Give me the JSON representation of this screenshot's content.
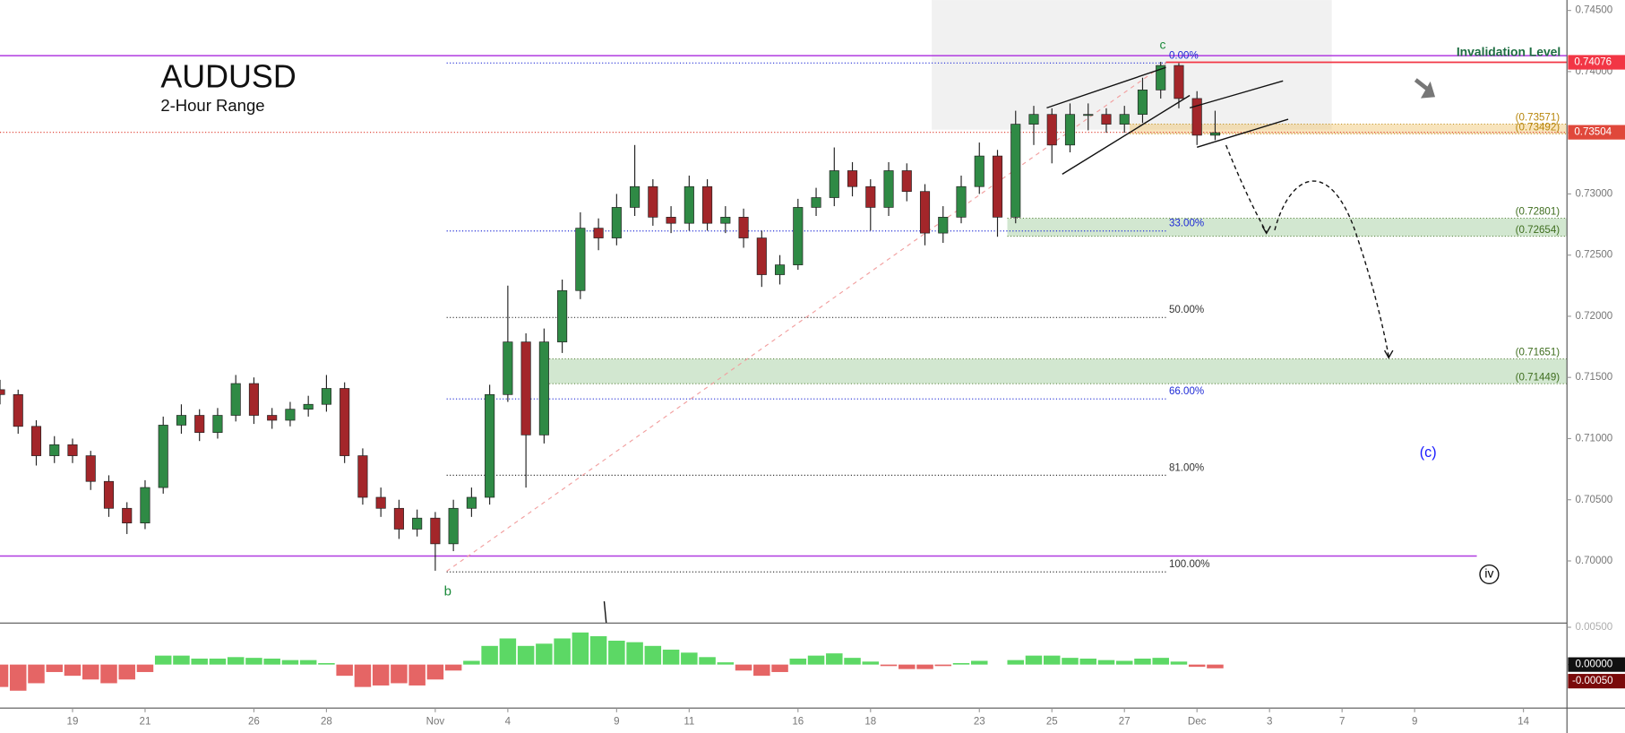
{
  "chart_data": {
    "type": "candlestick",
    "title": "AUDUSD",
    "subtitle": "2-Hour Range",
    "x": [
      0,
      0.5,
      1,
      1.5,
      2,
      2.5,
      3,
      3.5,
      4,
      4.5,
      5,
      5.5,
      6,
      6.5,
      7,
      7.5,
      8,
      8.5,
      9,
      9.5,
      10,
      10.5,
      11,
      11.5,
      12,
      12.5,
      13,
      13.5,
      14,
      14.5,
      15,
      15.5,
      16,
      16.5,
      17,
      17.5,
      18,
      18.5,
      19,
      19.5,
      20,
      20.5,
      21,
      21.5,
      22,
      22.5,
      23,
      23.5,
      24,
      24.5,
      25,
      25.5,
      26,
      26.5,
      27,
      27.5,
      28,
      28.5,
      29,
      29.5,
      30,
      30.5,
      31,
      31.5,
      32,
      32.5,
      33,
      33.5
    ],
    "open": [
      0.714,
      0.7136,
      0.711,
      0.7086,
      0.7095,
      0.7086,
      0.7065,
      0.7043,
      0.7031,
      0.706,
      0.7111,
      0.7119,
      0.7105,
      0.7119,
      0.7145,
      0.7119,
      0.7115,
      0.7124,
      0.7128,
      0.7141,
      0.7086,
      0.7052,
      0.7043,
      0.7026,
      0.7035,
      0.7014,
      0.7043,
      0.7052,
      0.7136,
      0.7179,
      0.7103,
      0.7179,
      0.7221,
      0.7272,
      0.7264,
      0.7289,
      0.7306,
      0.7281,
      0.7276,
      0.7306,
      0.7276,
      0.7281,
      0.7264,
      0.7234,
      0.7242,
      0.7289,
      0.7297,
      0.7319,
      0.7306,
      0.7289,
      0.7319,
      0.7302,
      0.7268,
      0.7281,
      0.7306,
      0.7331,
      0.7281,
      0.7357,
      0.7365,
      0.734,
      0.7365,
      0.7365,
      0.7357,
      0.7365,
      0.7385,
      0.7405,
      0.7378,
      0.7348
    ],
    "high": [
      0.7148,
      0.714,
      0.7115,
      0.7102,
      0.71,
      0.709,
      0.707,
      0.7048,
      0.7066,
      0.7118,
      0.7128,
      0.7124,
      0.7125,
      0.7152,
      0.715,
      0.7125,
      0.713,
      0.7135,
      0.7152,
      0.7146,
      0.7092,
      0.706,
      0.705,
      0.7042,
      0.704,
      0.705,
      0.706,
      0.7144,
      0.7225,
      0.7186,
      0.719,
      0.723,
      0.7285,
      0.728,
      0.73,
      0.734,
      0.7312,
      0.729,
      0.7315,
      0.7312,
      0.729,
      0.7288,
      0.727,
      0.725,
      0.7296,
      0.7305,
      0.7338,
      0.7326,
      0.7312,
      0.7326,
      0.7325,
      0.7308,
      0.729,
      0.7315,
      0.7342,
      0.7336,
      0.7368,
      0.7372,
      0.737,
      0.7374,
      0.7374,
      0.737,
      0.7372,
      0.7395,
      0.7408,
      0.7407,
      0.7384,
      0.7368
    ],
    "low": [
      0.7128,
      0.7104,
      0.7078,
      0.708,
      0.708,
      0.7058,
      0.7036,
      0.7022,
      0.7026,
      0.7055,
      0.7104,
      0.7098,
      0.71,
      0.7114,
      0.7112,
      0.7108,
      0.711,
      0.7118,
      0.7122,
      0.708,
      0.7046,
      0.7036,
      0.7018,
      0.702,
      0.6992,
      0.7008,
      0.7036,
      0.7046,
      0.713,
      0.706,
      0.7096,
      0.717,
      0.7214,
      0.7254,
      0.7258,
      0.7282,
      0.7274,
      0.7268,
      0.727,
      0.727,
      0.7268,
      0.7256,
      0.7224,
      0.7226,
      0.7238,
      0.7282,
      0.729,
      0.7298,
      0.727,
      0.7282,
      0.7294,
      0.7258,
      0.726,
      0.7276,
      0.73,
      0.7265,
      0.7276,
      0.734,
      0.7325,
      0.7334,
      0.7352,
      0.735,
      0.735,
      0.7358,
      0.7378,
      0.737,
      0.734,
      0.7344
    ],
    "close": [
      0.7136,
      0.711,
      0.7086,
      0.7095,
      0.7086,
      0.7065,
      0.7043,
      0.7031,
      0.706,
      0.7111,
      0.7119,
      0.7105,
      0.7119,
      0.7145,
      0.7119,
      0.7115,
      0.7124,
      0.7128,
      0.7141,
      0.7086,
      0.7052,
      0.7043,
      0.7026,
      0.7035,
      0.7014,
      0.7043,
      0.7052,
      0.7136,
      0.7179,
      0.7103,
      0.7179,
      0.7221,
      0.7272,
      0.7264,
      0.7289,
      0.7306,
      0.7281,
      0.7276,
      0.7306,
      0.7276,
      0.7281,
      0.7264,
      0.7234,
      0.7242,
      0.7289,
      0.7297,
      0.7319,
      0.7306,
      0.7289,
      0.7319,
      0.7302,
      0.7268,
      0.7281,
      0.7306,
      0.7331,
      0.7281,
      0.7357,
      0.7365,
      0.734,
      0.7365,
      0.7365,
      0.7357,
      0.7365,
      0.7385,
      0.7405,
      0.7378,
      0.7348,
      0.735
    ],
    "up_color": "#2f8a45",
    "down_color": "#a3262a",
    "xlim": [
      0,
      43.2
    ],
    "xticks": [
      {
        "value": 2,
        "label": "19"
      },
      {
        "value": 4,
        "label": "21"
      },
      {
        "value": 7,
        "label": "26"
      },
      {
        "value": 9,
        "label": "28"
      },
      {
        "value": 12,
        "label": "Nov"
      },
      {
        "value": 14,
        "label": "4"
      },
      {
        "value": 17,
        "label": "9"
      },
      {
        "value": 19,
        "label": "11"
      },
      {
        "value": 22,
        "label": "16"
      },
      {
        "value": 24,
        "label": "18"
      },
      {
        "value": 27,
        "label": "23"
      },
      {
        "value": 29,
        "label": "25"
      },
      {
        "value": 31,
        "label": "27"
      },
      {
        "value": 33,
        "label": "Dec"
      },
      {
        "value": 35,
        "label": "3"
      },
      {
        "value": 37,
        "label": "7"
      },
      {
        "value": 39,
        "label": "9"
      },
      {
        "value": 42,
        "label": "14"
      }
    ],
    "ylim": [
      0.69492,
      0.74585
    ],
    "yticks": [
      {
        "value": 0.745,
        "label": "0.74500"
      },
      {
        "value": 0.74,
        "label": "0.74000"
      },
      {
        "value": 0.735,
        "label": "0.73500"
      },
      {
        "value": 0.73,
        "label": "0.73000"
      },
      {
        "value": 0.725,
        "label": "0.72500"
      },
      {
        "value": 0.72,
        "label": "0.72000"
      },
      {
        "value": 0.715,
        "label": "0.71500"
      },
      {
        "value": 0.71,
        "label": "0.71000"
      },
      {
        "value": 0.705,
        "label": "0.70500"
      },
      {
        "value": 0.7,
        "label": "0.70000"
      }
    ],
    "levels": [
      {
        "value": 0.74076,
        "label": "0.74076",
        "color": "#f23645"
      },
      {
        "value": 0.73504,
        "label": "0.73504",
        "color": "#e0483b"
      }
    ],
    "horizontal_lines": [
      {
        "value": 0.7413,
        "color": "#b03be0"
      },
      {
        "value": 0.7004,
        "color": "#b03be0"
      }
    ],
    "zones": [
      {
        "top": 0.73571,
        "bottom": 0.73492,
        "top_label": "(0.73571)",
        "bottom_label": "(0.73492)",
        "color": "#f0c36a",
        "label_color": "#b8860b"
      },
      {
        "top": 0.72801,
        "bottom": 0.72654,
        "top_label": "(0.72801)",
        "bottom_label": "(0.72654)",
        "color": "#9cc997",
        "label_color": "#3f6e1f"
      },
      {
        "top": 0.71651,
        "bottom": 0.71449,
        "top_label": "(0.71651)",
        "bottom_label": "(0.71449)",
        "color": "#9cc997",
        "label_color": "#3f6e1f"
      }
    ],
    "fib": {
      "high": 0.7407,
      "low": 0.6991,
      "levels": [
        {
          "value": 0,
          "label": "0.00%",
          "color": "#1e2ad6"
        },
        {
          "value": 33,
          "label": "33.00%",
          "color": "#1e2ad6"
        },
        {
          "value": 50,
          "label": "50.00%",
          "color": "#333"
        },
        {
          "value": 66,
          "label": "66.00%",
          "color": "#1e2ad6"
        },
        {
          "value": 81,
          "label": "81.00%",
          "color": "#333"
        },
        {
          "value": 100,
          "label": "100.00%",
          "color": "#333"
        }
      ]
    },
    "annotations": [
      {
        "text": "c",
        "color": "#1b8a3a"
      },
      {
        "text": "b",
        "color": "#1b8a3a"
      },
      {
        "text": "(c)",
        "color": "#1a1aff"
      },
      {
        "text": "iv",
        "color": "#000"
      },
      {
        "text": "Invalidation Level",
        "color": "#1f6e43"
      }
    ],
    "indicator": {
      "type": "histogram",
      "values": [
        -0.003,
        -0.0035,
        -0.0025,
        -0.001,
        -0.0015,
        -0.002,
        -0.0025,
        -0.002,
        -0.001,
        0.0012,
        0.0012,
        0.0008,
        0.0008,
        0.001,
        0.0009,
        0.0008,
        0.0006,
        0.0006,
        0.0002,
        -0.0015,
        -0.003,
        -0.0028,
        -0.0025,
        -0.0028,
        -0.002,
        -0.0008,
        0.0005,
        0.0025,
        0.0035,
        0.0025,
        0.0028,
        0.0035,
        0.0043,
        0.0038,
        0.0032,
        0.003,
        0.0025,
        0.002,
        0.0016,
        0.001,
        0.0003,
        -0.0008,
        -0.0015,
        -0.001,
        0.0008,
        0.0012,
        0.0015,
        0.0009,
        0.0004,
        -0.0002,
        -0.0006,
        -0.0006,
        -0.0002,
        0.0002,
        0.0005,
        0,
        0.0006,
        0.0012,
        0.0012,
        0.0009,
        0.0008,
        0.0006,
        0.0005,
        0.0008,
        0.0009,
        0.0004,
        -0.0003,
        -0.0005
      ],
      "positive_color": "#3fd14a",
      "negative_color": "#e04a4a",
      "ylim": [
        -0.00583,
        0.00556
      ],
      "yticks": [
        {
          "value": 0.005,
          "label": "0.00500"
        },
        {
          "value": 0,
          "label": "0.00000"
        }
      ],
      "last_value": -0.0005,
      "last_value_label": "-0.00050"
    }
  }
}
